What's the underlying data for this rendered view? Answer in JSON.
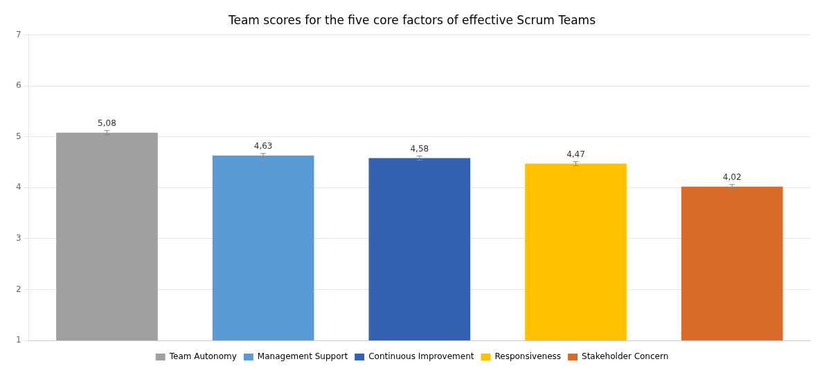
{
  "chart_data": {
    "type": "bar",
    "title": "Team scores for the five core factors of effective Scrum Teams",
    "categories": [
      "Team Autonomy",
      "Management Support",
      "Continuous Improvement",
      "Responsiveness",
      "Stakeholder Concern"
    ],
    "values": [
      5.08,
      4.63,
      4.58,
      4.47,
      4.02
    ],
    "value_labels": [
      "5,08",
      "4,63",
      "4,58",
      "4,47",
      "4,02"
    ],
    "errors": [
      0.04,
      0.04,
      0.04,
      0.04,
      0.04
    ],
    "colors": [
      "#a0a0a0",
      "#5b9bd5",
      "#3461b0",
      "#ffc000",
      "#d96b2a"
    ],
    "ylim": [
      1,
      7
    ],
    "yticks": [
      1,
      2,
      3,
      4,
      5,
      6,
      7
    ],
    "grid": true,
    "legend": "bottom",
    "data_labels": true,
    "tick_labels": "y"
  }
}
